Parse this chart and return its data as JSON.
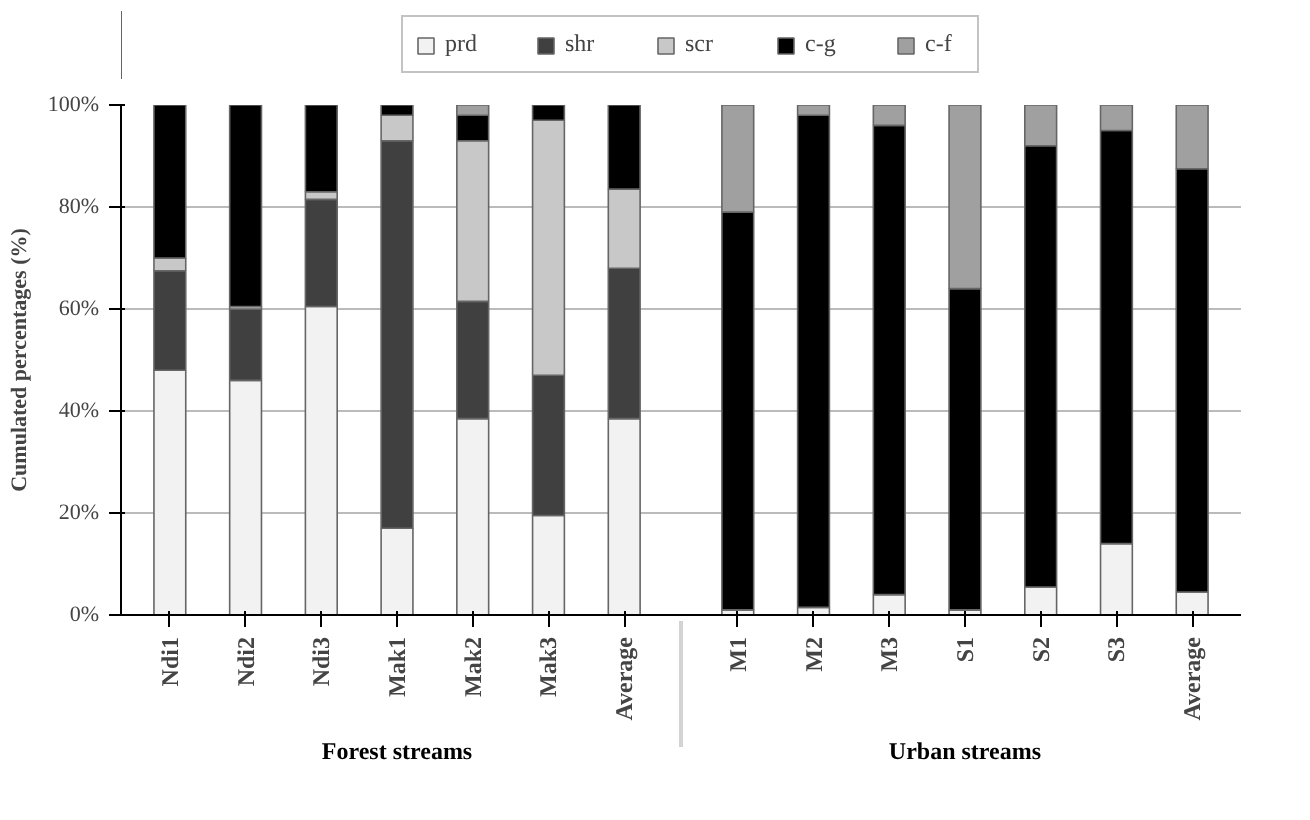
{
  "chart_data": {
    "type": "bar",
    "stacked": true,
    "ylabel": "Cumulated percentages (%)",
    "categories": [
      "Ndi1",
      "Ndi2",
      "Ndi3",
      "Mak1",
      "Mak2",
      "Mak3",
      "Average",
      "M1",
      "M2",
      "M3",
      "S1",
      "S2",
      "S3",
      "Average"
    ],
    "series": [
      {
        "name": "prd",
        "color": "#f2f2f2",
        "values": [
          48,
          46,
          60.5,
          17,
          38.5,
          19.5,
          38.5,
          1,
          1.5,
          4,
          1,
          5.5,
          14,
          4.5
        ]
      },
      {
        "name": "shr",
        "color": "#404040",
        "values": [
          19.5,
          14,
          21,
          76,
          23,
          27.5,
          29.5,
          0,
          0,
          0,
          0,
          0,
          0,
          0
        ]
      },
      {
        "name": "scr",
        "color": "#c8c8c8",
        "values": [
          2.5,
          0.5,
          1.5,
          5,
          31.5,
          50,
          15.5,
          0,
          0,
          0,
          0,
          0,
          0,
          0
        ]
      },
      {
        "name": "c-g",
        "color": "#000000",
        "values": [
          30,
          39.5,
          17,
          2,
          5,
          3,
          16.5,
          78,
          96.5,
          92,
          63,
          86.5,
          81,
          83
        ]
      },
      {
        "name": "c-f",
        "color": "#a0a0a0",
        "values": [
          0,
          0,
          0,
          0,
          2,
          0,
          0,
          21,
          2,
          4,
          36,
          8,
          5,
          12.5
        ]
      }
    ],
    "ylim": [
      0,
      100
    ],
    "yticks": [
      {
        "value": 0,
        "label": "0%"
      },
      {
        "value": 20,
        "label": "20%"
      },
      {
        "value": 40,
        "label": "40%"
      },
      {
        "value": 60,
        "label": "60%"
      },
      {
        "value": 80,
        "label": "80%"
      },
      {
        "value": 100,
        "label": "100%"
      }
    ],
    "grid": "y",
    "legend": "top",
    "annotations": [
      "Forest streams",
      "Urban streams"
    ]
  }
}
